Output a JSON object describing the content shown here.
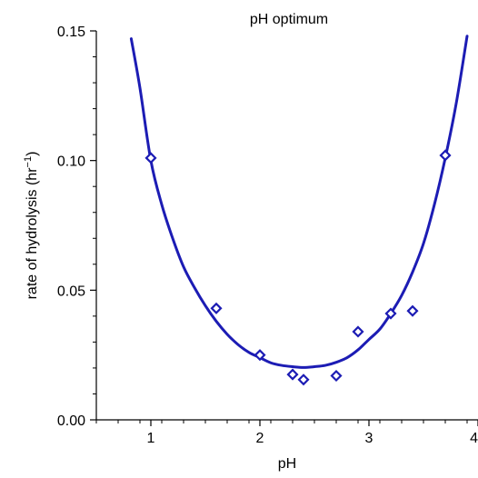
{
  "chart_data": {
    "type": "scatter",
    "title": "pH optimum",
    "xlabel": "pH",
    "ylabel": "rate of hydrolysis (hr",
    "ylabel_superscript": "−1",
    "ylabel_suffix": ")",
    "xlim": [
      0.5,
      4.0
    ],
    "ylim": [
      0.0,
      0.15
    ],
    "x_ticks": [
      1,
      2,
      3,
      4
    ],
    "x_tick_labels": [
      "1",
      "2",
      "3",
      "4"
    ],
    "y_ticks": [
      0.0,
      0.05,
      0.1,
      0.15
    ],
    "y_tick_labels": [
      "0.00",
      "0.05",
      "0.10",
      "0.15"
    ],
    "grid": false,
    "colors": {
      "series": "#1c1cb4",
      "axis": "#000000"
    },
    "series": [
      {
        "kind": "points",
        "marker": "diamond",
        "x": [
          1.0,
          1.6,
          2.0,
          2.3,
          2.4,
          2.7,
          2.9,
          3.2,
          3.4,
          3.7
        ],
        "y": [
          0.101,
          0.043,
          0.025,
          0.0175,
          0.0155,
          0.017,
          0.034,
          0.041,
          0.042,
          0.102
        ]
      },
      {
        "kind": "fit-line",
        "x": [
          0.82,
          0.9,
          1.0,
          1.1,
          1.2,
          1.3,
          1.4,
          1.5,
          1.6,
          1.7,
          1.8,
          1.9,
          2.0,
          2.1,
          2.2,
          2.3,
          2.4,
          2.5,
          2.6,
          2.7,
          2.8,
          2.9,
          3.0,
          3.1,
          3.2,
          3.3,
          3.4,
          3.5,
          3.6,
          3.7,
          3.8,
          3.9
        ],
        "y": [
          0.147,
          0.128,
          0.1,
          0.083,
          0.07,
          0.059,
          0.051,
          0.044,
          0.038,
          0.033,
          0.029,
          0.026,
          0.024,
          0.022,
          0.021,
          0.0205,
          0.0202,
          0.0205,
          0.021,
          0.0222,
          0.024,
          0.027,
          0.031,
          0.035,
          0.041,
          0.048,
          0.057,
          0.068,
          0.083,
          0.101,
          0.122,
          0.148
        ]
      }
    ]
  }
}
